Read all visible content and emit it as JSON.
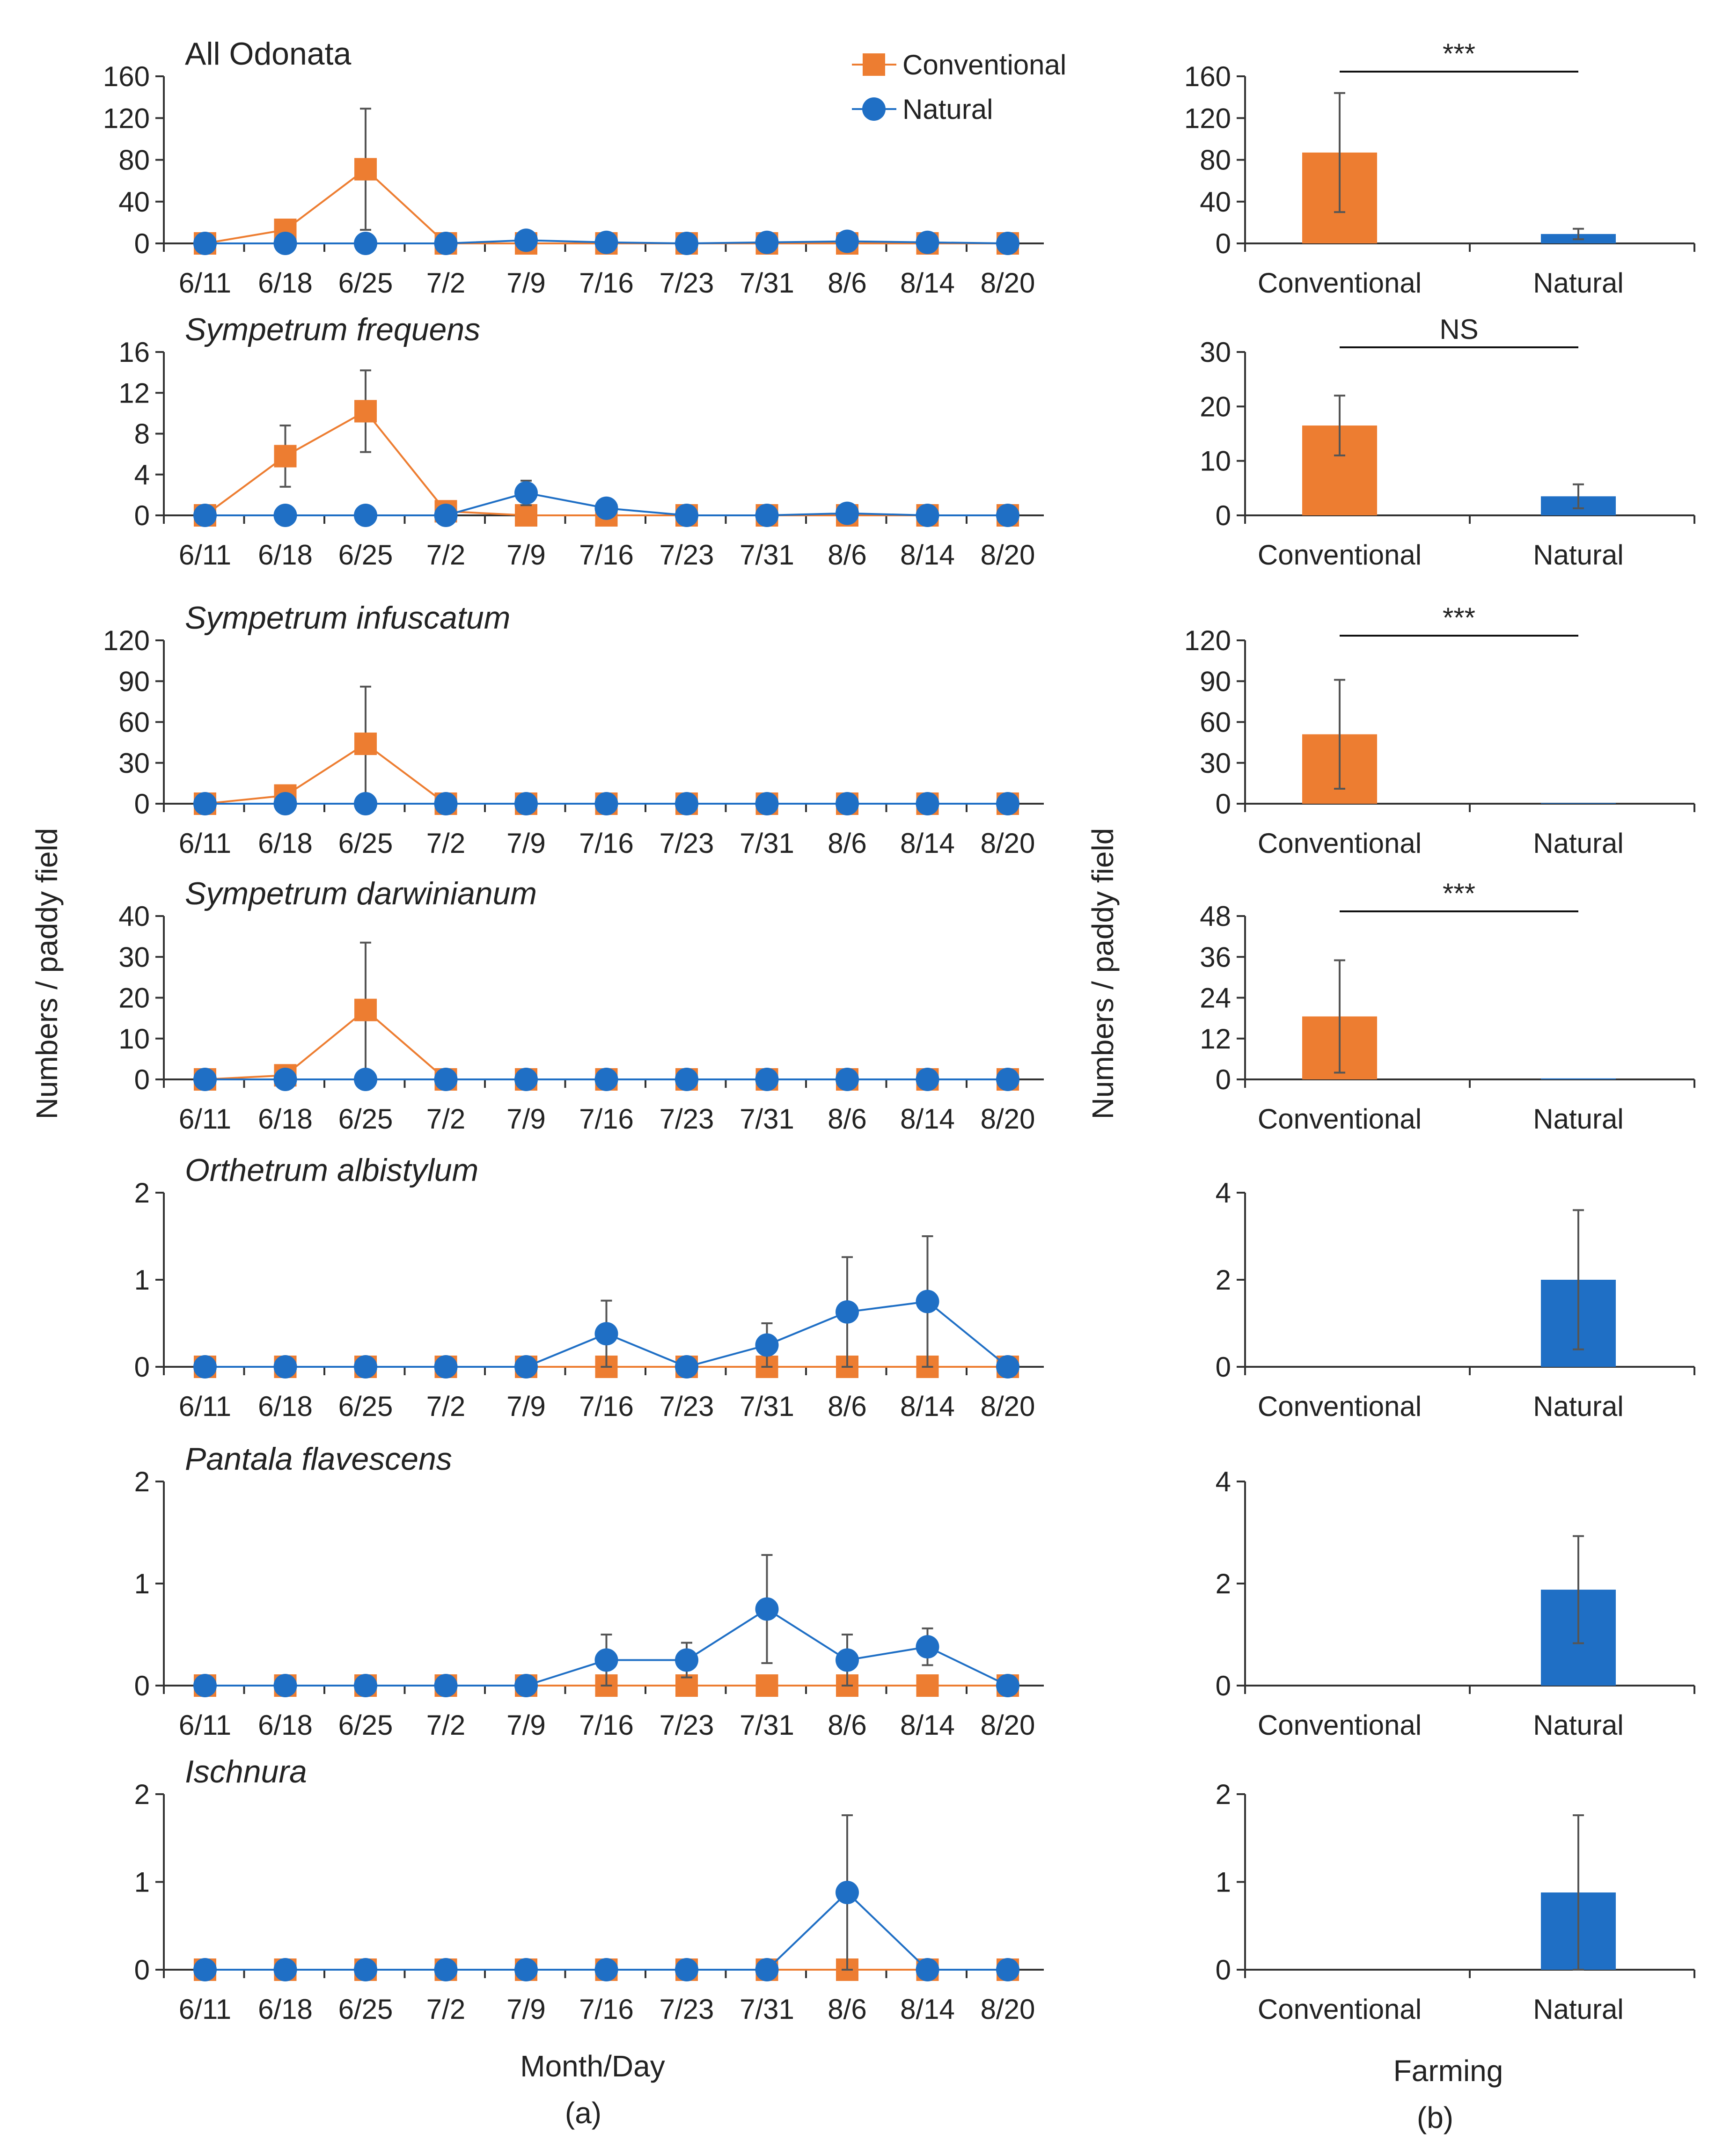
{
  "figure": {
    "panel_a_label": "(a)",
    "panel_b_label": "(b)",
    "xlabel_a": "Month/Day",
    "xlabel_b": "Farming",
    "ylabel_a": "Numbers / paddy field",
    "ylabel_b": "Numbers / paddy field",
    "legend": {
      "conventional": "Conventional",
      "natural": "Natural"
    },
    "colors": {
      "conventional": "#ED7D31",
      "natural": "#1F6FC5",
      "axis": "#333333",
      "error": "#555555"
    }
  },
  "chart_data": [
    {
      "type": "line",
      "panel": "a",
      "title": "All Odonata",
      "italic": false,
      "categories": [
        "6/11",
        "6/18",
        "6/25",
        "7/2",
        "7/9",
        "7/16",
        "7/23",
        "7/31",
        "8/6",
        "8/14",
        "8/20"
      ],
      "yticks": [
        "0",
        "40",
        "80",
        "120",
        "160"
      ],
      "ylim": [
        0,
        160
      ],
      "legend": "top-right",
      "series": [
        {
          "name": "Conventional",
          "values": [
            0,
            13,
            71,
            0,
            0,
            0,
            0,
            0,
            0,
            0,
            0
          ],
          "errors": [
            0,
            0,
            58,
            0,
            0,
            0,
            0,
            0,
            0,
            0,
            0
          ]
        },
        {
          "name": "Natural",
          "values": [
            0,
            0,
            0,
            0,
            3,
            1,
            0,
            1,
            2,
            1,
            0
          ],
          "errors": [
            0,
            0,
            0,
            0,
            0,
            0,
            0,
            0,
            0,
            0,
            0
          ]
        }
      ]
    },
    {
      "type": "line",
      "panel": "a",
      "title": "Sympetrum frequens",
      "italic": true,
      "categories": [
        "6/11",
        "6/18",
        "6/25",
        "7/2",
        "7/9",
        "7/16",
        "7/23",
        "7/31",
        "8/6",
        "8/14",
        "8/20"
      ],
      "yticks": [
        "0",
        "4",
        "8",
        "12",
        "16"
      ],
      "ylim": [
        0,
        16
      ],
      "series": [
        {
          "name": "Conventional",
          "values": [
            0,
            5.8,
            10.2,
            0.4,
            0,
            0,
            0,
            0,
            0,
            0,
            0
          ],
          "errors": [
            0,
            3,
            4,
            0,
            0,
            0,
            0,
            0,
            0,
            0,
            0
          ]
        },
        {
          "name": "Natural",
          "values": [
            0,
            0,
            0,
            0,
            2.2,
            0.7,
            0,
            0,
            0.2,
            0,
            0
          ],
          "errors": [
            0,
            0,
            0,
            0,
            1.2,
            0,
            0,
            0,
            0,
            0,
            0
          ]
        }
      ]
    },
    {
      "type": "line",
      "panel": "a",
      "title": "Sympetrum infuscatum",
      "italic": true,
      "categories": [
        "6/11",
        "6/18",
        "6/25",
        "7/2",
        "7/9",
        "7/16",
        "7/23",
        "7/31",
        "8/6",
        "8/14",
        "8/20"
      ],
      "yticks": [
        "0",
        "30",
        "60",
        "90",
        "120"
      ],
      "ylim": [
        0,
        120
      ],
      "series": [
        {
          "name": "Conventional",
          "values": [
            0,
            6,
            44,
            0,
            0,
            0,
            0,
            0,
            0,
            0,
            0
          ],
          "errors": [
            0,
            0,
            42,
            0,
            0,
            0,
            0,
            0,
            0,
            0,
            0
          ]
        },
        {
          "name": "Natural",
          "values": [
            0,
            0,
            0,
            0,
            0,
            0,
            0,
            0,
            0,
            0,
            0
          ],
          "errors": [
            0,
            0,
            0,
            0,
            0,
            0,
            0,
            0,
            0,
            0,
            0
          ]
        }
      ]
    },
    {
      "type": "line",
      "panel": "a",
      "title": "Sympetrum darwinianum",
      "italic": true,
      "categories": [
        "6/11",
        "6/18",
        "6/25",
        "7/2",
        "7/9",
        "7/16",
        "7/23",
        "7/31",
        "8/6",
        "8/14",
        "8/20"
      ],
      "yticks": [
        "0",
        "10",
        "20",
        "30",
        "40"
      ],
      "ylim": [
        0,
        40
      ],
      "series": [
        {
          "name": "Conventional",
          "values": [
            0,
            1,
            17,
            0,
            0,
            0,
            0,
            0,
            0,
            0,
            0
          ],
          "errors": [
            0,
            0,
            16.5,
            0,
            0,
            0,
            0,
            0,
            0,
            0,
            0
          ]
        },
        {
          "name": "Natural",
          "values": [
            0,
            0,
            0,
            0,
            0,
            0,
            0,
            0,
            0,
            0,
            0
          ],
          "errors": [
            0,
            0,
            0,
            0,
            0,
            0,
            0,
            0,
            0,
            0,
            0
          ]
        }
      ]
    },
    {
      "type": "line",
      "panel": "a",
      "title": "Orthetrum albistylum",
      "italic": true,
      "categories": [
        "6/11",
        "6/18",
        "6/25",
        "7/2",
        "7/9",
        "7/16",
        "7/23",
        "7/31",
        "8/6",
        "8/14",
        "8/20"
      ],
      "yticks": [
        "0",
        "1",
        "2"
      ],
      "ylim": [
        0,
        2
      ],
      "series": [
        {
          "name": "Conventional",
          "values": [
            0,
            0,
            0,
            0,
            0,
            0,
            0,
            0,
            0,
            0,
            0
          ],
          "errors": [
            0,
            0,
            0,
            0,
            0,
            0,
            0,
            0,
            0,
            0,
            0
          ]
        },
        {
          "name": "Natural",
          "values": [
            0,
            0,
            0,
            0,
            0,
            0.38,
            0,
            0.25,
            0.63,
            0.75,
            0
          ],
          "errors": [
            0,
            0,
            0,
            0,
            0,
            0.38,
            0,
            0.25,
            0.63,
            0.75,
            0
          ]
        }
      ]
    },
    {
      "type": "line",
      "panel": "a",
      "title": "Pantala flavescens",
      "italic": true,
      "categories": [
        "6/11",
        "6/18",
        "6/25",
        "7/2",
        "7/9",
        "7/16",
        "7/23",
        "7/31",
        "8/6",
        "8/14",
        "8/20"
      ],
      "yticks": [
        "0",
        "1",
        "2"
      ],
      "ylim": [
        0,
        2
      ],
      "series": [
        {
          "name": "Conventional",
          "values": [
            0,
            0,
            0,
            0,
            0,
            0,
            0,
            0,
            0,
            0,
            0
          ],
          "errors": [
            0,
            0,
            0,
            0,
            0,
            0,
            0,
            0,
            0,
            0,
            0
          ]
        },
        {
          "name": "Natural",
          "values": [
            0,
            0,
            0,
            0,
            0,
            0.25,
            0.25,
            0.75,
            0.25,
            0.38,
            0
          ],
          "errors": [
            0,
            0,
            0,
            0,
            0,
            0.25,
            0.17,
            0.53,
            0.25,
            0.18,
            0
          ]
        }
      ]
    },
    {
      "type": "line",
      "panel": "a",
      "title": "Ischnura",
      "italic": true,
      "categories": [
        "6/11",
        "6/18",
        "6/25",
        "7/2",
        "7/9",
        "7/16",
        "7/23",
        "7/31",
        "8/6",
        "8/14",
        "8/20"
      ],
      "yticks": [
        "0",
        "1",
        "2"
      ],
      "ylim": [
        0,
        2
      ],
      "series": [
        {
          "name": "Conventional",
          "values": [
            0,
            0,
            0,
            0,
            0,
            0,
            0,
            0,
            0,
            0,
            0
          ],
          "errors": [
            0,
            0,
            0,
            0,
            0,
            0,
            0,
            0,
            0,
            0,
            0
          ]
        },
        {
          "name": "Natural",
          "values": [
            0,
            0,
            0,
            0,
            0,
            0,
            0,
            0,
            0.88,
            0,
            0
          ],
          "errors": [
            0,
            0,
            0,
            0,
            0,
            0,
            0,
            0,
            0.88,
            0,
            0
          ]
        }
      ]
    },
    {
      "type": "bar",
      "panel": "b",
      "title": "All Odonata",
      "categories": [
        "Conventional",
        "Natural"
      ],
      "values": [
        87,
        9
      ],
      "errors": [
        57,
        5
      ],
      "yticks": [
        "0",
        "40",
        "80",
        "120",
        "160"
      ],
      "ylim": [
        0,
        160
      ],
      "significance": "***"
    },
    {
      "type": "bar",
      "panel": "b",
      "title": "Sympetrum frequens",
      "categories": [
        "Conventional",
        "Natural"
      ],
      "values": [
        16.5,
        3.5
      ],
      "errors": [
        5.5,
        2.2
      ],
      "yticks": [
        "0",
        "10",
        "20",
        "30"
      ],
      "ylim": [
        0,
        30
      ],
      "significance": "NS"
    },
    {
      "type": "bar",
      "panel": "b",
      "title": "Sympetrum infuscatum",
      "categories": [
        "Conventional",
        "Natural"
      ],
      "values": [
        51,
        0.5
      ],
      "errors": [
        40,
        0
      ],
      "yticks": [
        "0",
        "30",
        "60",
        "90",
        "120"
      ],
      "ylim": [
        0,
        120
      ],
      "significance": "***"
    },
    {
      "type": "bar",
      "panel": "b",
      "title": "Sympetrum darwinianum",
      "categories": [
        "Conventional",
        "Natural"
      ],
      "values": [
        18.5,
        0.3
      ],
      "errors": [
        16.5,
        0
      ],
      "yticks": [
        "0",
        "12",
        "24",
        "36",
        "48"
      ],
      "ylim": [
        0,
        48
      ],
      "significance": "***"
    },
    {
      "type": "bar",
      "panel": "b",
      "title": "Orthetrum albistylum",
      "categories": [
        "Conventional",
        "Natural"
      ],
      "values": [
        0,
        2
      ],
      "errors": [
        0,
        1.6
      ],
      "yticks": [
        "0",
        "2",
        "4"
      ],
      "ylim": [
        0,
        4
      ],
      "significance": ""
    },
    {
      "type": "bar",
      "panel": "b",
      "title": "Pantala flavescens",
      "categories": [
        "Conventional",
        "Natural"
      ],
      "values": [
        0,
        1.88
      ],
      "errors": [
        0,
        1.05
      ],
      "yticks": [
        "0",
        "2",
        "4"
      ],
      "ylim": [
        0,
        4
      ],
      "significance": ""
    },
    {
      "type": "bar",
      "panel": "b",
      "title": "Ischnura",
      "categories": [
        "Conventional",
        "Natural"
      ],
      "values": [
        0,
        0.88
      ],
      "errors": [
        0,
        0.88
      ],
      "yticks": [
        "0",
        "1",
        "2"
      ],
      "ylim": [
        0,
        2
      ],
      "significance": ""
    }
  ]
}
